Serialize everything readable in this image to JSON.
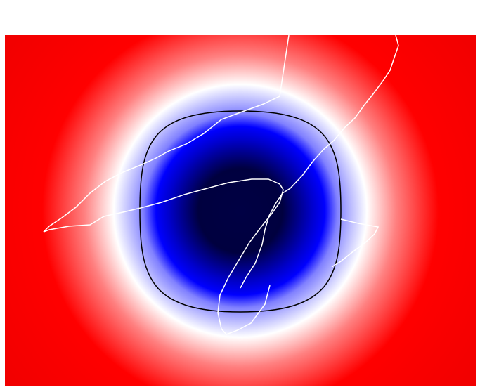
{
  "colors": {
    "background": "#ffffff",
    "field_gradient": [
      "#000044",
      "#00003f",
      "#0000cc",
      "#0000ff",
      "#8080ff",
      "#ffffff",
      "#ff8080",
      "#ff0000",
      "#dd0000"
    ],
    "contour_line": "#000000",
    "trajectory_lines": "#ffffff"
  },
  "plot": {
    "type": "heatmap",
    "colormap": "seismic",
    "axes_visible": false,
    "contour_levels": 1,
    "trajectory_count": 3
  }
}
